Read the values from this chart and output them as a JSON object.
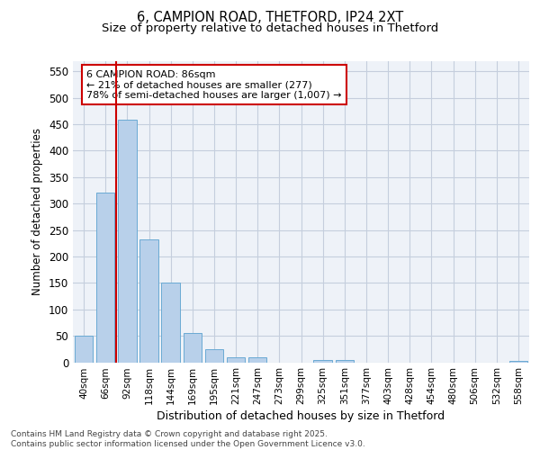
{
  "title_line1": "6, CAMPION ROAD, THETFORD, IP24 2XT",
  "title_line2": "Size of property relative to detached houses in Thetford",
  "xlabel": "Distribution of detached houses by size in Thetford",
  "ylabel": "Number of detached properties",
  "categories": [
    "40sqm",
    "66sqm",
    "92sqm",
    "118sqm",
    "144sqm",
    "169sqm",
    "195sqm",
    "221sqm",
    "247sqm",
    "273sqm",
    "299sqm",
    "325sqm",
    "351sqm",
    "377sqm",
    "403sqm",
    "428sqm",
    "454sqm",
    "480sqm",
    "506sqm",
    "532sqm",
    "558sqm"
  ],
  "values": [
    50,
    320,
    458,
    232,
    150,
    55,
    25,
    10,
    9,
    0,
    0,
    5,
    5,
    0,
    0,
    0,
    0,
    0,
    0,
    0,
    3
  ],
  "bar_color": "#b8d0ea",
  "bar_edge_color": "#6aaad4",
  "vline_color": "#cc0000",
  "vline_x": 1.5,
  "annotation_line1": "6 CAMPION ROAD: 86sqm",
  "annotation_line2": "← 21% of detached houses are smaller (277)",
  "annotation_line3": "78% of semi-detached houses are larger (1,007) →",
  "annotation_box_edgecolor": "#cc0000",
  "ylim_min": 0,
  "ylim_max": 570,
  "yticks": [
    0,
    50,
    100,
    150,
    200,
    250,
    300,
    350,
    400,
    450,
    500,
    550
  ],
  "footer_text": "Contains HM Land Registry data © Crown copyright and database right 2025.\nContains public sector information licensed under the Open Government Licence v3.0.",
  "bg_color": "#eef2f8",
  "grid_color": "#c5cedd"
}
